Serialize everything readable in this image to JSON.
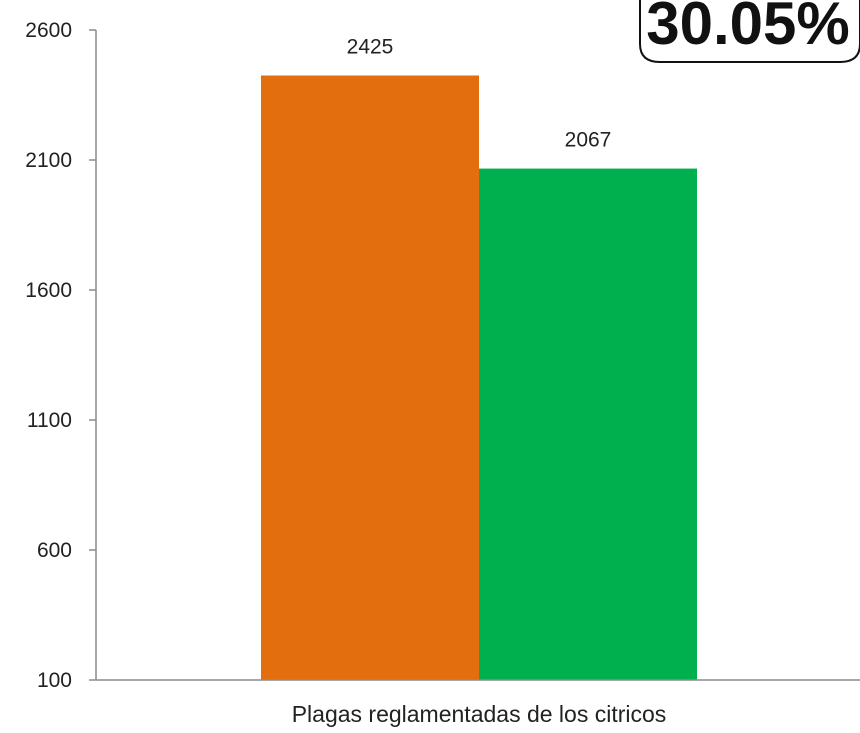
{
  "callout": {
    "text": "30.05%"
  },
  "chart_data": {
    "type": "bar",
    "categories": [
      "Plagas reglamentadas de los citricos"
    ],
    "series": [
      {
        "values": [
          2425
        ],
        "color": "#e26e0e"
      },
      {
        "values": [
          2067
        ],
        "color": "#00b04f"
      }
    ],
    "ylim": [
      100,
      2600
    ],
    "yticks": [
      100,
      600,
      1100,
      1600,
      2100,
      2600
    ],
    "title": "",
    "xlabel": "",
    "ylabel": "",
    "grid": false
  }
}
